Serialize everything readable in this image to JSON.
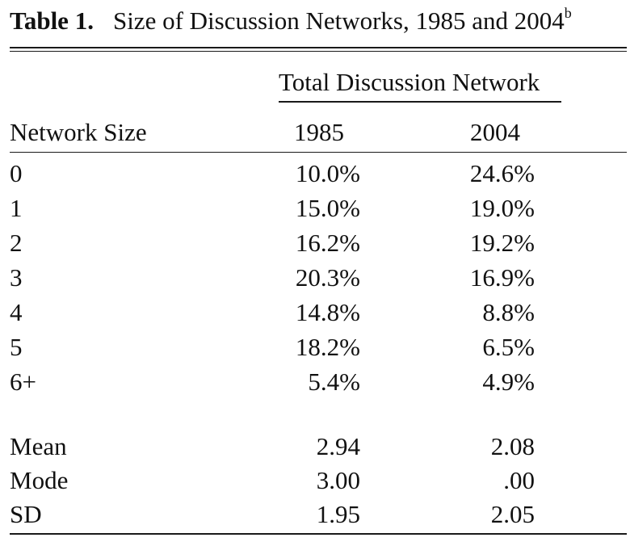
{
  "table": {
    "label": "Table 1.",
    "caption": "Size of Discussion Networks, 1985 and 2004",
    "caption_sup": "b",
    "spanner": "Total Discussion Network",
    "headers": [
      "Network Size",
      "1985",
      "2004"
    ],
    "rows": [
      [
        "0",
        "10.0%",
        "24.6%"
      ],
      [
        "1",
        "15.0%",
        "19.0%"
      ],
      [
        "2",
        "16.2%",
        "19.2%"
      ],
      [
        "3",
        "20.3%",
        "16.9%"
      ],
      [
        "4",
        "14.8%",
        "8.8%"
      ],
      [
        "5",
        "18.2%",
        "6.5%"
      ],
      [
        "6+",
        "5.4%",
        "4.9%"
      ]
    ],
    "summary_rows": [
      [
        "Mean",
        "2.94",
        "2.08"
      ],
      [
        "Mode",
        "3.00",
        ".00"
      ],
      [
        "SD",
        "1.95",
        "2.05"
      ]
    ]
  }
}
